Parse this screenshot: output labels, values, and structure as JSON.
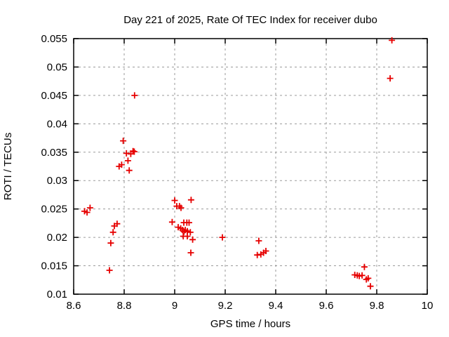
{
  "chart_data": {
    "type": "scatter",
    "title": "Day 221 of 2025, Rate Of TEC Index for receiver dubo",
    "xlabel": "GPS time / hours",
    "ylabel": "ROTI / TECUs",
    "xlim": [
      8.6,
      10
    ],
    "ylim": [
      0.01,
      0.055
    ],
    "grid": true,
    "legend": "none",
    "background_color": "#ffffff",
    "grid_color": "#9a9a9a",
    "marker": {
      "shape": "plus",
      "size": 9,
      "color": "#e60000"
    },
    "xticks": [
      {
        "value": 8.6,
        "label": "8.6"
      },
      {
        "value": 8.8,
        "label": "8.8"
      },
      {
        "value": 9.0,
        "label": "9"
      },
      {
        "value": 9.2,
        "label": "9.2"
      },
      {
        "value": 9.4,
        "label": "9.4"
      },
      {
        "value": 9.6,
        "label": "9.6"
      },
      {
        "value": 9.8,
        "label": "9.8"
      },
      {
        "value": 10.0,
        "label": "10"
      }
    ],
    "yticks": [
      {
        "value": 0.01,
        "label": "0.01"
      },
      {
        "value": 0.015,
        "label": "0.015"
      },
      {
        "value": 0.02,
        "label": "0.02"
      },
      {
        "value": 0.025,
        "label": "0.025"
      },
      {
        "value": 0.03,
        "label": "0.03"
      },
      {
        "value": 0.035,
        "label": "0.035"
      },
      {
        "value": 0.04,
        "label": "0.04"
      },
      {
        "value": 0.045,
        "label": "0.045"
      },
      {
        "value": 0.05,
        "label": "0.05"
      },
      {
        "value": 0.055,
        "label": "0.055"
      }
    ],
    "series": [
      {
        "name": "ROTI",
        "points": [
          [
            8.643,
            0.0246
          ],
          [
            8.653,
            0.0244
          ],
          [
            8.665,
            0.0252
          ],
          [
            8.742,
            0.0142
          ],
          [
            8.747,
            0.019
          ],
          [
            8.756,
            0.0209
          ],
          [
            8.761,
            0.022
          ],
          [
            8.772,
            0.0224
          ],
          [
            8.78,
            0.0325
          ],
          [
            8.79,
            0.0328
          ],
          [
            8.796,
            0.037
          ],
          [
            8.809,
            0.0348
          ],
          [
            8.815,
            0.0335
          ],
          [
            8.82,
            0.0318
          ],
          [
            8.826,
            0.0347
          ],
          [
            8.835,
            0.0352
          ],
          [
            8.84,
            0.0351
          ],
          [
            8.841,
            0.045
          ],
          [
            8.99,
            0.0227
          ],
          [
            9.0,
            0.0265
          ],
          [
            9.008,
            0.0255
          ],
          [
            9.014,
            0.0218
          ],
          [
            9.019,
            0.0255
          ],
          [
            9.024,
            0.0216
          ],
          [
            9.025,
            0.0252
          ],
          [
            9.031,
            0.0213
          ],
          [
            9.034,
            0.0202
          ],
          [
            9.036,
            0.0226
          ],
          [
            9.037,
            0.021
          ],
          [
            9.042,
            0.0213
          ],
          [
            9.048,
            0.0226
          ],
          [
            9.05,
            0.0211
          ],
          [
            9.05,
            0.0202
          ],
          [
            9.057,
            0.0226
          ],
          [
            9.062,
            0.0209
          ],
          [
            9.064,
            0.0173
          ],
          [
            9.065,
            0.0266
          ],
          [
            9.071,
            0.0196
          ],
          [
            9.189,
            0.02
          ],
          [
            9.327,
            0.0169
          ],
          [
            9.333,
            0.0194
          ],
          [
            9.341,
            0.017
          ],
          [
            9.352,
            0.0173
          ],
          [
            9.361,
            0.0176
          ],
          [
            9.713,
            0.0134
          ],
          [
            9.723,
            0.0133
          ],
          [
            9.731,
            0.0132
          ],
          [
            9.742,
            0.0133
          ],
          [
            9.751,
            0.0148
          ],
          [
            9.759,
            0.0126
          ],
          [
            9.766,
            0.0128
          ],
          [
            9.775,
            0.0114
          ],
          [
            9.853,
            0.048
          ],
          [
            9.86,
            0.0547
          ]
        ]
      }
    ]
  }
}
